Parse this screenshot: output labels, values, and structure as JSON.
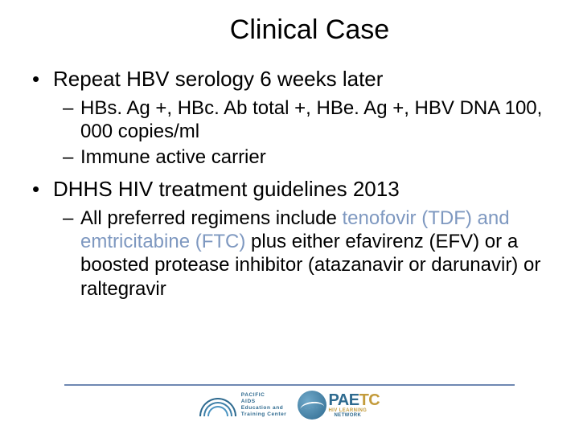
{
  "colors": {
    "text": "#000000",
    "highlight": "#7e98c0",
    "footer_line": "#6f88b2",
    "logo_left_primary": "#2e6a8f",
    "logo_right_accent": "#c39b3b",
    "background": "#ffffff"
  },
  "typography": {
    "title_fontsize": 34,
    "l1_fontsize": 26,
    "l2_fontsize": 24,
    "font_family": "Arial"
  },
  "title": "Clinical Case",
  "bullets": {
    "b1": "Repeat HBV serology 6 weeks later",
    "b1a": "HBs. Ag +, HBc. Ab total +, HBe. Ag +, HBV DNA 100, 000 copies/ml",
    "b1b": "Immune active carrier",
    "b2": "DHHS HIV treatment guidelines 2013",
    "b2a_pre": "All preferred regimens include ",
    "b2a_hl": "tenofovir (TDF) and emtricitabine (FTC)",
    "b2a_post": " plus either efavirenz (EFV) or a boosted protease inhibitor (atazanavir or darunavir) or raltegravir"
  },
  "logos": {
    "left_line1": "PACIFIC",
    "left_line2": "AIDS",
    "left_line3": "Education and",
    "left_line4": "Training Center",
    "right_main_a": "PAE",
    "right_main_b": "TC",
    "right_sub_a": "HIV LEARNING",
    "right_sub_b": "NETWORK"
  }
}
